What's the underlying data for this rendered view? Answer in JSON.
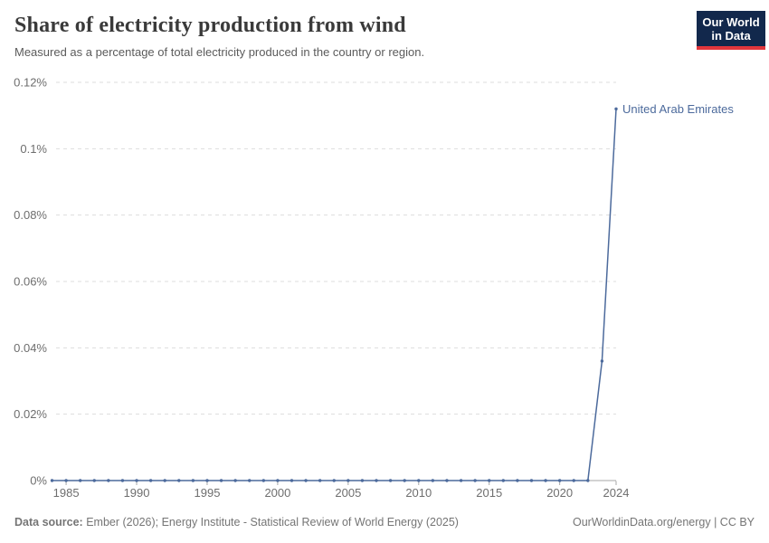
{
  "header": {
    "title": "Share of electricity production from wind",
    "subtitle": "Measured as a percentage of total electricity produced in the country or region.",
    "logo": {
      "line1": "Our World",
      "line2": "in Data",
      "bg_color": "#12284C",
      "accent_color": "#E2363C"
    }
  },
  "chart_data": {
    "type": "line",
    "title": "Share of electricity production from wind",
    "subtitle": "Measured as a percentage of total electricity produced in the country or region.",
    "line_color": "#4C6A9C",
    "x": [
      1984,
      1985,
      1986,
      1987,
      1988,
      1989,
      1990,
      1991,
      1992,
      1993,
      1994,
      1995,
      1996,
      1997,
      1998,
      1999,
      2000,
      2001,
      2002,
      2003,
      2004,
      2005,
      2006,
      2007,
      2008,
      2009,
      2010,
      2011,
      2012,
      2013,
      2014,
      2015,
      2016,
      2017,
      2018,
      2019,
      2020,
      2021,
      2022,
      2023,
      2024
    ],
    "series": [
      {
        "name": "United Arab Emirates",
        "values": [
          0,
          0,
          0,
          0,
          0,
          0,
          0,
          0,
          0,
          0,
          0,
          0,
          0,
          0,
          0,
          0,
          0,
          0,
          0,
          0,
          0,
          0,
          0,
          0,
          0,
          0,
          0,
          0,
          0,
          0,
          0,
          0,
          0,
          0,
          0,
          0,
          0,
          0,
          0,
          0.036,
          0.112
        ]
      }
    ],
    "x_ticks": [
      1985,
      1990,
      1995,
      2000,
      2005,
      2010,
      2015,
      2020,
      2024
    ],
    "y_ticks": [
      0,
      0.02,
      0.04,
      0.06,
      0.08,
      0.1,
      0.12
    ],
    "y_tick_labels": [
      "0%",
      "0.02%",
      "0.04%",
      "0.06%",
      "0.08%",
      "0.1%",
      "0.12%"
    ],
    "xlim": [
      1984,
      2024
    ],
    "ylim": [
      0,
      0.12
    ],
    "grid": "horizontal-dashed",
    "legend_position": "end-of-line-label"
  },
  "footer": {
    "datasource_label": "Data source:",
    "datasource_text": "Ember (2026); Energy Institute - Statistical Review of World Energy (2025)",
    "link_text": "OurWorldinData.org/energy | CC BY"
  }
}
